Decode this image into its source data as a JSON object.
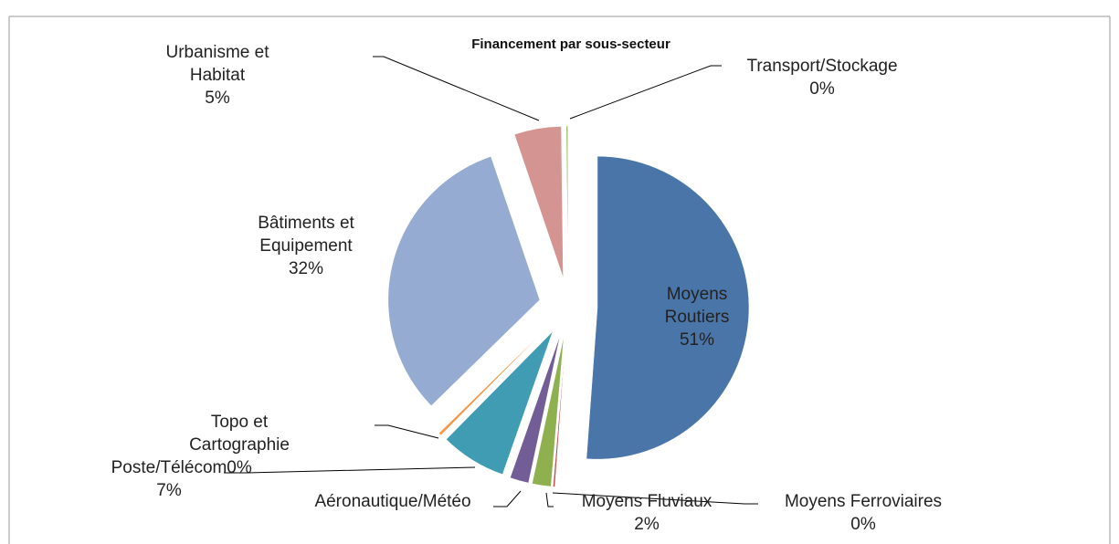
{
  "chart_data": {
    "type": "pie",
    "title": "Financement par sous-secteur",
    "categories": [
      "Moyens Routiers",
      "Moyens Ferroviaires",
      "Moyens Fluviaux",
      "Aéronautique/Météo",
      "Poste/Télécom",
      "Topo et Cartographie",
      "Bâtiments et Equipement",
      "Urbanisme et Habitat",
      "Transport/Stockage"
    ],
    "values": [
      51,
      0.2,
      2,
      2,
      7,
      0.3,
      32,
      5,
      0.2
    ],
    "value_labels": [
      "51%",
      "0%",
      "2%",
      null,
      "7%",
      "0%",
      "32%",
      "5%",
      "0%"
    ],
    "colors": [
      "#4a75a9",
      "#c0504d",
      "#8fb04f",
      "#725d96",
      "#3f9cb2",
      "#f79646",
      "#95abd2",
      "#d49592",
      "#a9c47a"
    ]
  }
}
